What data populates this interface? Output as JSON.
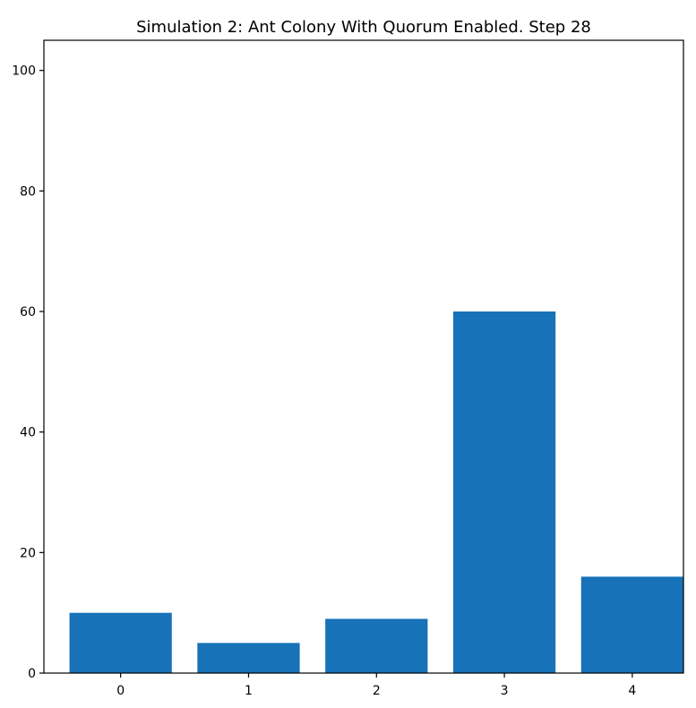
{
  "chart_data": {
    "type": "bar",
    "title": "Simulation 2: Ant Colony With Quorum Enabled. Step 28",
    "xlabel": "",
    "ylabel": "",
    "categories": [
      "0",
      "1",
      "2",
      "3",
      "4"
    ],
    "values": [
      10,
      5,
      9,
      60,
      16
    ],
    "ylim": [
      0,
      105
    ],
    "xlim": [
      -0.6,
      4.4
    ],
    "yticks": [
      0,
      20,
      40,
      60,
      80,
      100
    ],
    "grid": false,
    "bar_color": "#1772b8"
  }
}
